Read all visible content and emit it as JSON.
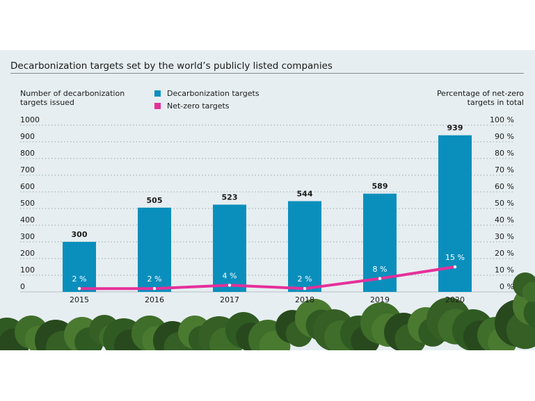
{
  "title": "Decarbonization targets set by the world’s publicly listed companies",
  "colors": {
    "bars": "#0a8fbd",
    "line": "#e5309a",
    "background": "#e6eef1",
    "grid": "#9aa7ad",
    "foliage": "#2f5a22"
  },
  "chart_data": {
    "type": "bar",
    "title": "Decarbonization targets set by the world’s publicly listed companies",
    "categories": [
      "2015",
      "2016",
      "2017",
      "2018",
      "2019",
      "2020"
    ],
    "series": [
      {
        "name": "Decarbonization targets",
        "type": "bar",
        "axis": "left",
        "values": [
          300,
          505,
          523,
          544,
          589,
          939
        ]
      },
      {
        "name": "Net-zero targets",
        "type": "line",
        "axis": "right",
        "values": [
          2,
          2,
          4,
          2,
          8,
          15
        ]
      }
    ],
    "ylabel": "Number of decarbonization targets issued",
    "y2label": "Percentage of net-zero targets in total",
    "ylim": [
      0,
      1000
    ],
    "y2lim": [
      0,
      100
    ],
    "yticks": [
      "0",
      "100",
      "200",
      "300",
      "400",
      "500",
      "600",
      "700",
      "800",
      "900",
      "1000"
    ],
    "y2ticks": [
      "0 %",
      "10 %",
      "20 %",
      "30 %",
      "40 %",
      "50 %",
      "60 %",
      "70 %",
      "80 %",
      "90 %",
      "100 %"
    ],
    "bar_labels": [
      "300",
      "505",
      "523",
      "544",
      "589",
      "939"
    ],
    "line_labels": [
      "2 %",
      "2 %",
      "4 %",
      "2 %",
      "8 %",
      "15 %"
    ],
    "grid": true,
    "legend": [
      {
        "label": "Decarbonization targets",
        "color": "#0a8fbd"
      },
      {
        "label": "Net-zero targets",
        "color": "#e5309a"
      }
    ]
  }
}
